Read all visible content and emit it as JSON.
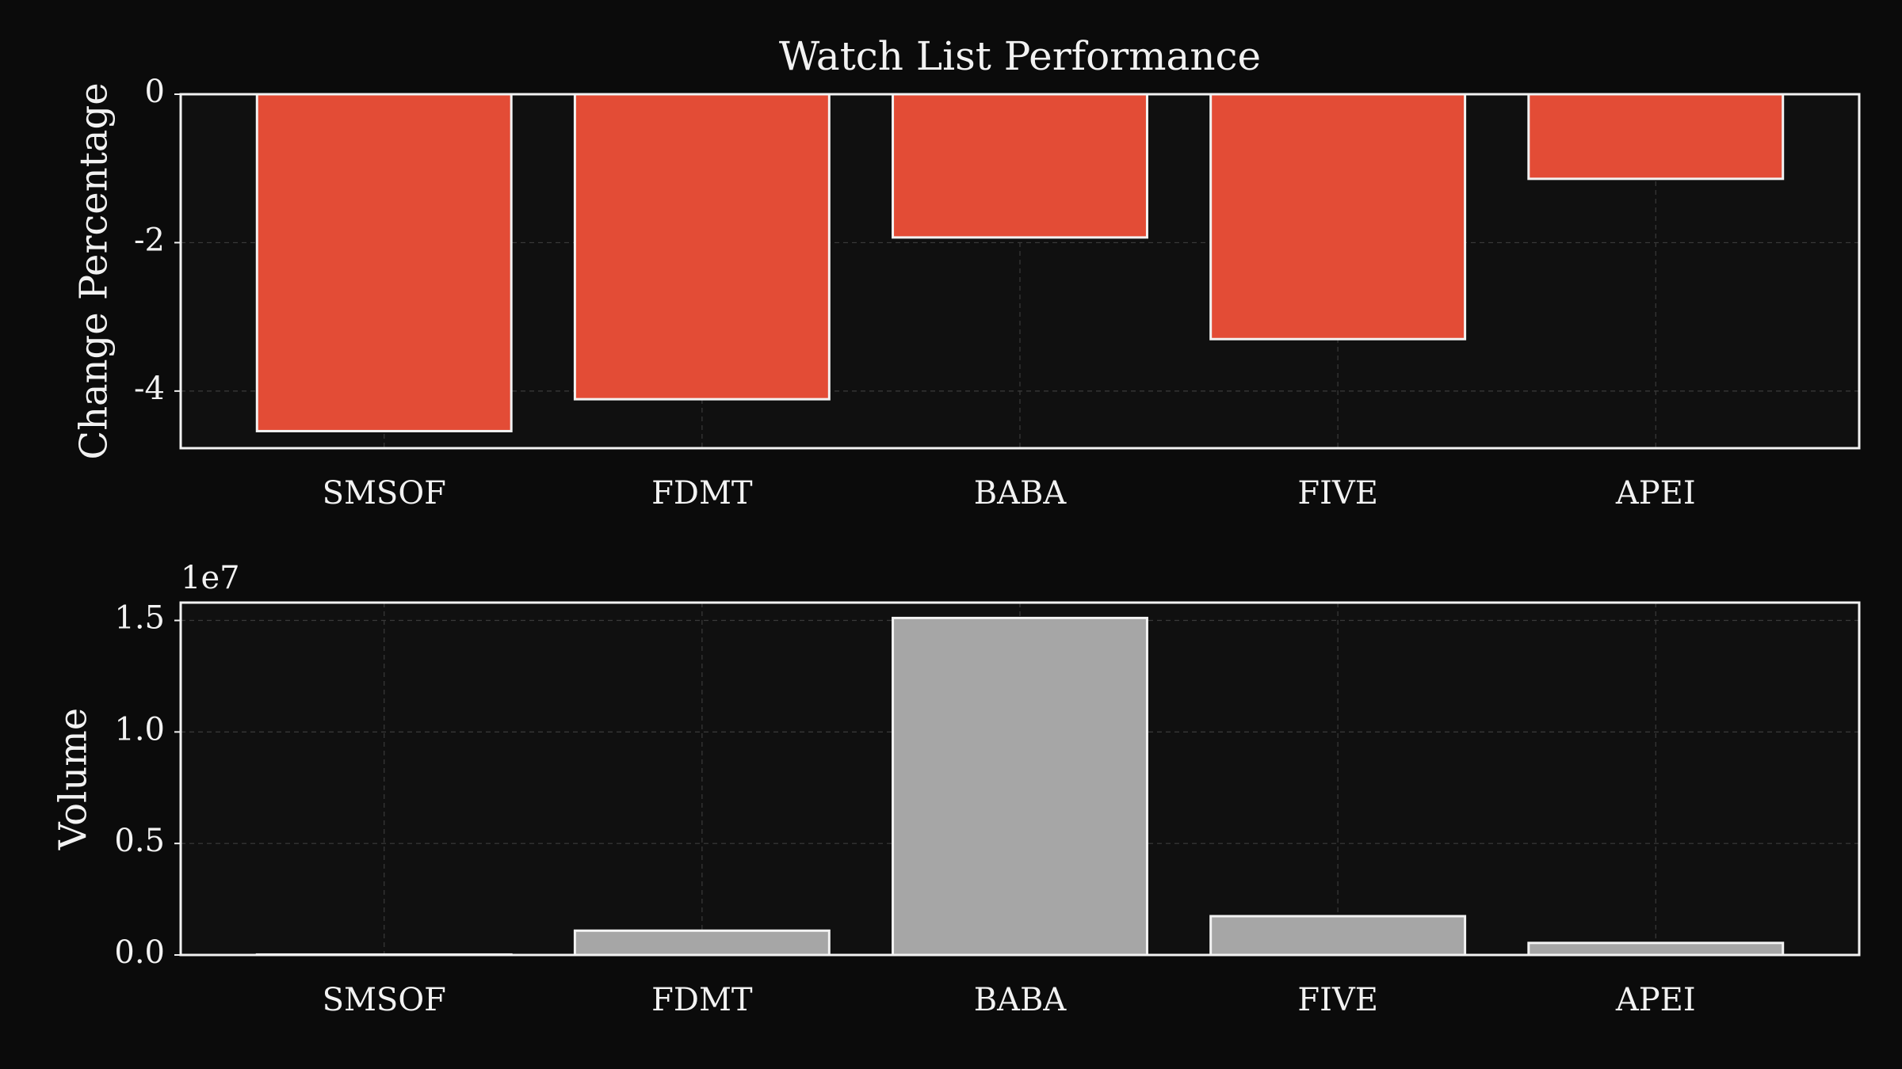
{
  "chart_data": [
    {
      "type": "bar",
      "title": "Watch List Performance",
      "ylabel": "Change Percentage",
      "categories": [
        "SMSOF",
        "FDMT",
        "BABA",
        "FIVE",
        "APEI"
      ],
      "values": [
        -4.54,
        -4.11,
        -1.93,
        -3.3,
        -1.14
      ],
      "color": "#e34c36",
      "ylim": [
        -4.77,
        0
      ],
      "yticks": [
        0,
        -2,
        -4
      ],
      "grid": true
    },
    {
      "type": "bar",
      "ylabel": "Volume",
      "offset_label": "1e7",
      "categories": [
        "SMSOF",
        "FDMT",
        "BABA",
        "FIVE",
        "APEI"
      ],
      "values": [
        0.002,
        0.109,
        1.511,
        0.174,
        0.054
      ],
      "color": "#a6a6a6",
      "ylim": [
        0,
        1.58
      ],
      "yticks": [
        {
          "value": 0,
          "label": "0.0"
        },
        {
          "value": 0.5,
          "label": "0.5"
        },
        {
          "value": 1.0,
          "label": "1.0"
        },
        {
          "value": 1.5,
          "label": "1.5"
        }
      ],
      "grid": true
    }
  ]
}
